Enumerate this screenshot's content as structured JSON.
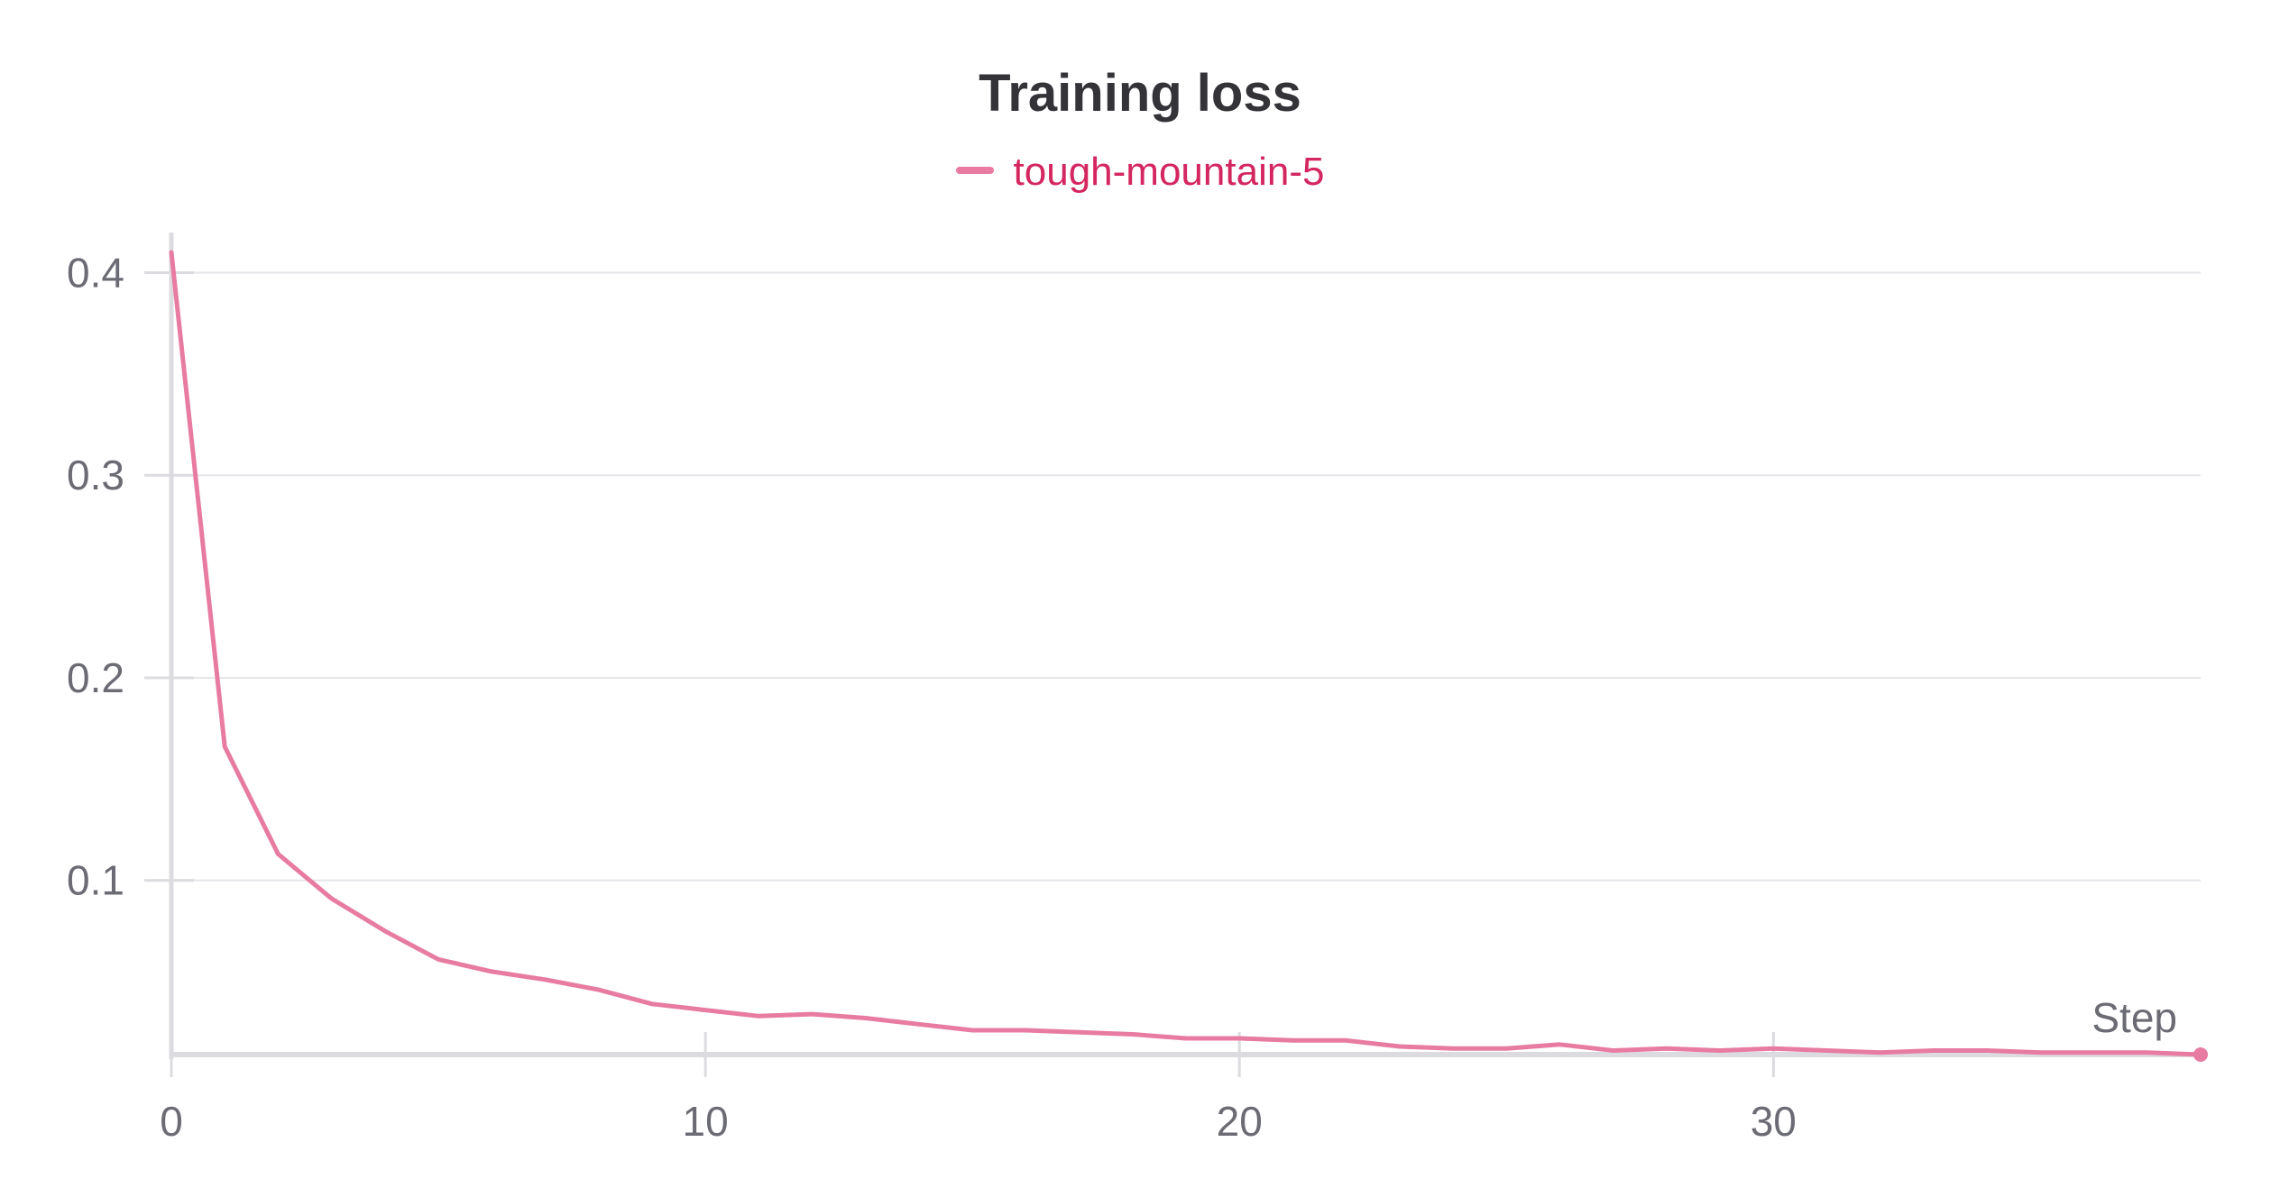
{
  "chart_data": {
    "type": "line",
    "title": "Training loss",
    "xlabel": "Step",
    "ylabel": "",
    "xlim": [
      0,
      38
    ],
    "ylim": [
      0.014,
      0.41
    ],
    "xticks": [
      0,
      10,
      20,
      30
    ],
    "yticks": [
      0.1,
      0.2,
      0.3,
      0.4
    ],
    "xtick_labels": [
      "0",
      "10",
      "20",
      "30"
    ],
    "ytick_labels": [
      "0.1",
      "0.2",
      "0.3",
      "0.4"
    ],
    "grid": true,
    "legend_position": "top-center",
    "series": [
      {
        "name": "tough-mountain-5",
        "color": "#e87ba1",
        "x": [
          0,
          1,
          2,
          3,
          4,
          5,
          6,
          7,
          8,
          9,
          10,
          11,
          12,
          13,
          14,
          15,
          16,
          17,
          18,
          19,
          20,
          21,
          22,
          23,
          24,
          25,
          26,
          27,
          28,
          29,
          30,
          31,
          32,
          33,
          34,
          35,
          36,
          37,
          38
        ],
        "y": [
          0.41,
          0.166,
          0.113,
          0.091,
          0.075,
          0.061,
          0.055,
          0.051,
          0.046,
          0.039,
          0.036,
          0.033,
          0.034,
          0.032,
          0.029,
          0.026,
          0.026,
          0.025,
          0.024,
          0.022,
          0.022,
          0.021,
          0.021,
          0.018,
          0.017,
          0.017,
          0.019,
          0.016,
          0.017,
          0.016,
          0.017,
          0.016,
          0.015,
          0.016,
          0.016,
          0.015,
          0.015,
          0.015,
          0.014
        ]
      }
    ]
  }
}
